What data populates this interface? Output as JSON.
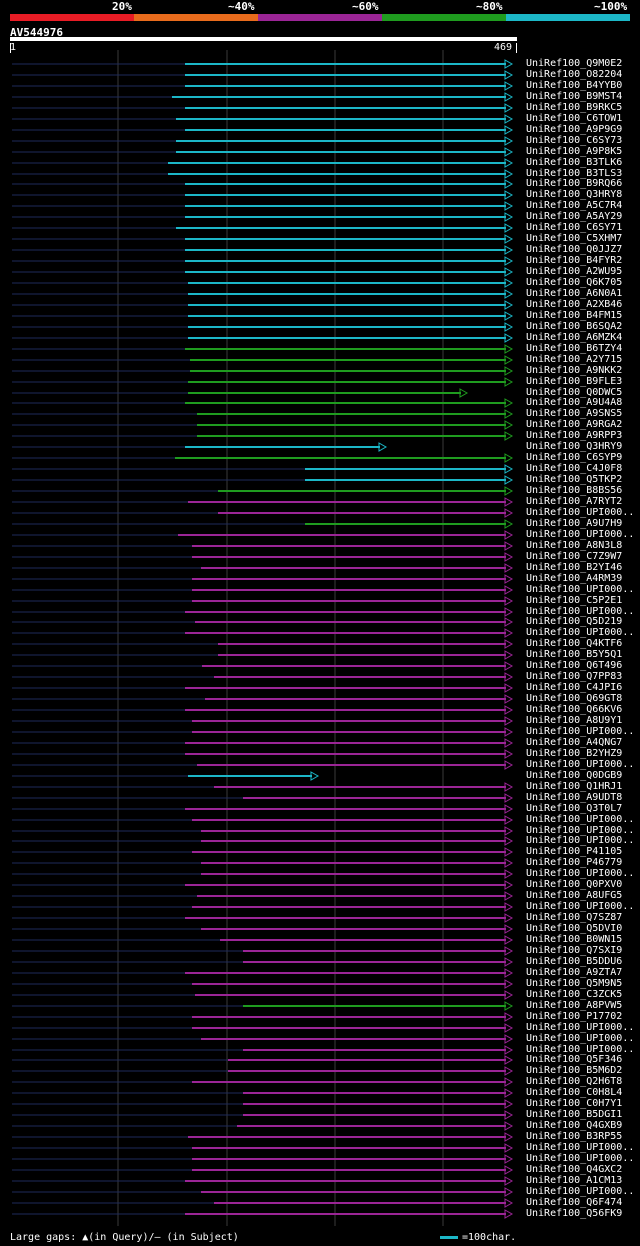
{
  "legend": {
    "labels": [
      "20%",
      "~40%",
      "~60%",
      "~80%",
      "~100%"
    ],
    "colors": [
      "#e81c25",
      "#e86b1c",
      "#9b2596",
      "#1f9c1f",
      "#1cb7c7"
    ]
  },
  "query": {
    "id": "AV544976",
    "start": "1",
    "end": "469"
  },
  "hits": [
    {
      "name": "UniRef100_Q9M0E2",
      "color": "cyan"
    },
    {
      "name": "UniRef100_O82204",
      "color": "cyan"
    },
    {
      "name": "UniRef100_B4YYB0",
      "color": "cyan"
    },
    {
      "name": "UniRef100_B9MST4",
      "color": "cyan"
    },
    {
      "name": "UniRef100_B9RKC5",
      "color": "cyan"
    },
    {
      "name": "UniRef100_C6TOW1",
      "color": "cyan"
    },
    {
      "name": "UniRef100_A9P9G9",
      "color": "cyan"
    },
    {
      "name": "UniRef100_C6SY73",
      "color": "cyan"
    },
    {
      "name": "UniRef100_A9P8K5",
      "color": "cyan"
    },
    {
      "name": "UniRef100_B3TLK6",
      "color": "cyan"
    },
    {
      "name": "UniRef100_B3TLS3",
      "color": "cyan"
    },
    {
      "name": "UniRef100_B9RQ66",
      "color": "cyan"
    },
    {
      "name": "UniRef100_Q3HRY8",
      "color": "cyan"
    },
    {
      "name": "UniRef100_A5C7R4",
      "color": "cyan"
    },
    {
      "name": "UniRef100_A5AY29",
      "color": "cyan"
    },
    {
      "name": "UniRef100_C6SY71",
      "color": "cyan"
    },
    {
      "name": "UniRef100_C5XHM7",
      "color": "cyan"
    },
    {
      "name": "UniRef100_Q0JJZ7",
      "color": "cyan"
    },
    {
      "name": "UniRef100_B4FYR2",
      "color": "cyan"
    },
    {
      "name": "UniRef100_A2WU95",
      "color": "cyan"
    },
    {
      "name": "UniRef100_Q6K705",
      "color": "cyan"
    },
    {
      "name": "UniRef100_A6N0A1",
      "color": "cyan"
    },
    {
      "name": "UniRef100_A2XB46",
      "color": "cyan"
    },
    {
      "name": "UniRef100_B4FM15",
      "color": "cyan"
    },
    {
      "name": "UniRef100_B6SQA2",
      "color": "cyan"
    },
    {
      "name": "UniRef100_A6MZK4",
      "color": "cyan"
    },
    {
      "name": "UniRef100_B6TZY4",
      "color": "green"
    },
    {
      "name": "UniRef100_A2Y715",
      "color": "green"
    },
    {
      "name": "UniRef100_A9NKK2",
      "color": "green"
    },
    {
      "name": "UniRef100_B9FLE3",
      "color": "green"
    },
    {
      "name": "UniRef100_Q0DWC5",
      "color": "green"
    },
    {
      "name": "UniRef100_A9U4A8",
      "color": "green"
    },
    {
      "name": "UniRef100_A9SNS5",
      "color": "green"
    },
    {
      "name": "UniRef100_A9RGA2",
      "color": "green"
    },
    {
      "name": "UniRef100_A9RPP3",
      "color": "green"
    },
    {
      "name": "UniRef100_Q3HRY9",
      "color": "cyan"
    },
    {
      "name": "UniRef100_C6SYP9",
      "color": "green"
    },
    {
      "name": "UniRef100_C4J0F8",
      "color": "cyan"
    },
    {
      "name": "UniRef100_Q5TKP2",
      "color": "cyan"
    },
    {
      "name": "UniRef100_B8BS56",
      "color": "green"
    },
    {
      "name": "UniRef100_A7RYT2",
      "color": "purple"
    },
    {
      "name": "UniRef100_UPI000..",
      "color": "purple"
    },
    {
      "name": "UniRef100_A9U7H9",
      "color": "green"
    },
    {
      "name": "UniRef100_UPI000..",
      "color": "purple"
    },
    {
      "name": "UniRef100_A8N3L8",
      "color": "purple"
    },
    {
      "name": "UniRef100_C7Z9W7",
      "color": "purple"
    },
    {
      "name": "UniRef100_B2YI46",
      "color": "purple"
    },
    {
      "name": "UniRef100_A4RM39",
      "color": "purple"
    },
    {
      "name": "UniRef100_UPI000..",
      "color": "purple"
    },
    {
      "name": "UniRef100_C5P2E1",
      "color": "purple"
    },
    {
      "name": "UniRef100_UPI000..",
      "color": "purple"
    },
    {
      "name": "UniRef100_Q5D219",
      "color": "purple"
    },
    {
      "name": "UniRef100_UPI000..",
      "color": "purple"
    },
    {
      "name": "UniRef100_Q4KTF6",
      "color": "purple"
    },
    {
      "name": "UniRef100_B5Y5Q1",
      "color": "purple"
    },
    {
      "name": "UniRef100_Q6T496",
      "color": "purple"
    },
    {
      "name": "UniRef100_Q7PP83",
      "color": "purple"
    },
    {
      "name": "UniRef100_C4JPI6",
      "color": "purple"
    },
    {
      "name": "UniRef100_Q69GT8",
      "color": "purple"
    },
    {
      "name": "UniRef100_Q66KV6",
      "color": "purple"
    },
    {
      "name": "UniRef100_A8U9Y1",
      "color": "purple"
    },
    {
      "name": "UniRef100_UPI000..",
      "color": "purple"
    },
    {
      "name": "UniRef100_A4QNG7",
      "color": "purple"
    },
    {
      "name": "UniRef100_B2YHZ9",
      "color": "purple"
    },
    {
      "name": "UniRef100_UPI000..",
      "color": "purple"
    },
    {
      "name": "UniRef100_Q0DGB9",
      "color": "cyan"
    },
    {
      "name": "UniRef100_Q1HRJ1",
      "color": "purple"
    },
    {
      "name": "UniRef100_A9UDT8",
      "color": "purple"
    },
    {
      "name": "UniRef100_Q3T0L7",
      "color": "purple"
    },
    {
      "name": "UniRef100_UPI000..",
      "color": "purple"
    },
    {
      "name": "UniRef100_UPI000..",
      "color": "purple"
    },
    {
      "name": "UniRef100_UPI000..",
      "color": "purple"
    },
    {
      "name": "UniRef100_P41105",
      "color": "purple"
    },
    {
      "name": "UniRef100_P46779",
      "color": "purple"
    },
    {
      "name": "UniRef100_UPI000..",
      "color": "purple"
    },
    {
      "name": "UniRef100_Q0PXV0",
      "color": "purple"
    },
    {
      "name": "UniRef100_A8UFG5",
      "color": "purple"
    },
    {
      "name": "UniRef100_UPI000..",
      "color": "purple"
    },
    {
      "name": "UniRef100_Q7SZ87",
      "color": "purple"
    },
    {
      "name": "UniRef100_Q5DVI0",
      "color": "purple"
    },
    {
      "name": "UniRef100_B0WN15",
      "color": "purple"
    },
    {
      "name": "UniRef100_Q7SXI9",
      "color": "purple"
    },
    {
      "name": "UniRef100_B5DDU6",
      "color": "purple"
    },
    {
      "name": "UniRef100_A9ZTA7",
      "color": "purple"
    },
    {
      "name": "UniRef100_Q5M9N5",
      "color": "purple"
    },
    {
      "name": "UniRef100_C3ZCK5",
      "color": "purple"
    },
    {
      "name": "UniRef100_A8PVW5",
      "color": "green"
    },
    {
      "name": "UniRef100_P17702",
      "color": "purple"
    },
    {
      "name": "UniRef100_UPI000..",
      "color": "purple"
    },
    {
      "name": "UniRef100_UPI000..",
      "color": "purple"
    },
    {
      "name": "UniRef100_UPI000..",
      "color": "purple"
    },
    {
      "name": "UniRef100_Q5F346",
      "color": "purple"
    },
    {
      "name": "UniRef100_B5M6D2",
      "color": "purple"
    },
    {
      "name": "UniRef100_Q2H6T8",
      "color": "purple"
    },
    {
      "name": "UniRef100_C0H8L4",
      "color": "purple"
    },
    {
      "name": "UniRef100_C0H7Y1",
      "color": "purple"
    },
    {
      "name": "UniRef100_B5DGI1",
      "color": "purple"
    },
    {
      "name": "UniRef100_Q4GXB9",
      "color": "purple"
    },
    {
      "name": "UniRef100_B3RP55",
      "color": "purple"
    },
    {
      "name": "UniRef100_UPI000..",
      "color": "purple"
    },
    {
      "name": "UniRef100_UPI000..",
      "color": "purple"
    },
    {
      "name": "UniRef100_Q4GXC2",
      "color": "purple"
    },
    {
      "name": "UniRef100_A1CM13",
      "color": "purple"
    },
    {
      "name": "UniRef100_UPI000..",
      "color": "purple"
    },
    {
      "name": "UniRef100_Q6F474",
      "color": "purple"
    },
    {
      "name": "UniRef100_Q56FK9",
      "color": "purple"
    }
  ],
  "footer": {
    "gaps_text": "Large gaps: ▲(in Query)/— (in Subject)",
    "scale_text": "=100char."
  }
}
